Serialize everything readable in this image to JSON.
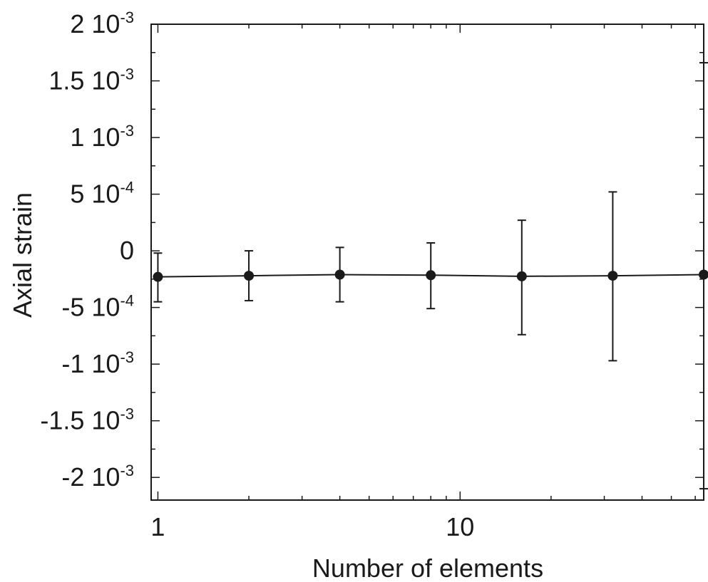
{
  "chart_data": {
    "type": "scatter",
    "title": "",
    "xlabel": "Number of elements",
    "ylabel": "Axial strain",
    "x_scale": "log",
    "xlim": [
      0.95,
      64
    ],
    "ylim": [
      -0.0022,
      0.002
    ],
    "x_ticks": [
      {
        "value": 1,
        "label": "1"
      },
      {
        "value": 10,
        "label": "10"
      }
    ],
    "y_ticks": [
      {
        "value": 0.002,
        "mantissa": "2",
        "exponent": "-3"
      },
      {
        "value": 0.0015,
        "mantissa": "1.5",
        "exponent": "-3"
      },
      {
        "value": 0.001,
        "mantissa": "1",
        "exponent": "-3"
      },
      {
        "value": 0.0005,
        "mantissa": "5",
        "exponent": "-4"
      },
      {
        "value": 0,
        "mantissa": "0",
        "exponent": ""
      },
      {
        "value": -0.0005,
        "mantissa": "-5",
        "exponent": "-4"
      },
      {
        "value": -0.001,
        "mantissa": "-1",
        "exponent": "-3"
      },
      {
        "value": -0.0015,
        "mantissa": "-1.5",
        "exponent": "-3"
      },
      {
        "value": -0.002,
        "mantissa": "-2",
        "exponent": "-3"
      }
    ],
    "grid": false,
    "legend": "none",
    "marker": "filled-circle",
    "color": "#1a1a1a",
    "series": [
      {
        "x": [
          1,
          2,
          4,
          8,
          16,
          32,
          64
        ],
        "y": [
          -0.00023,
          -0.00022,
          -0.00021,
          -0.000215,
          -0.000225,
          -0.00022,
          -0.00021
        ],
        "err_low": [
          -0.00045,
          -0.00044,
          -0.00045,
          -0.00051,
          -0.00074,
          -0.00097,
          -0.0021
        ],
        "err_high": [
          -2e-05,
          0.0,
          3e-05,
          7e-05,
          0.00027,
          0.00052,
          0.00166
        ]
      }
    ]
  }
}
